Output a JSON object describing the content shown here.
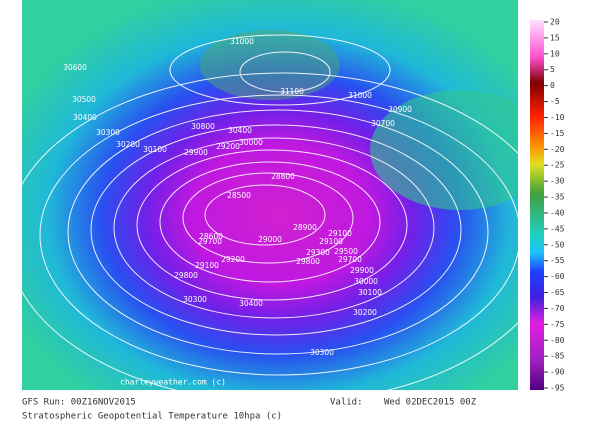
{
  "map": {
    "contour_labels": [
      "31000",
      "30600",
      "31100",
      "31000",
      "30900",
      "30500",
      "30400",
      "30800",
      "30400",
      "30700",
      "30300",
      "30200",
      "30100",
      "30000",
      "29900",
      "29200",
      "28800",
      "28500",
      "28900",
      "29100",
      "28600",
      "29700",
      "29000",
      "29100",
      "29300",
      "29500",
      "29200",
      "29800",
      "29700",
      "29100",
      "29900",
      "29800",
      "30000",
      "30100",
      "30300",
      "30400",
      "30200",
      "30300"
    ],
    "watermark": "charleyweather.com (c)"
  },
  "colorbar": {
    "ticks": [
      "20",
      "15",
      "10",
      "5",
      "0",
      "-5",
      "-10",
      "-15",
      "-20",
      "-25",
      "-30",
      "-35",
      "-40",
      "-45",
      "-50",
      "-55",
      "-60",
      "-65",
      "-70",
      "-75",
      "-80",
      "-85",
      "-90",
      "-95"
    ]
  },
  "footer": {
    "run": "GFS Run: 00Z16NOV2015",
    "valid_label": "Valid:",
    "valid": "Wed 02DEC2015 00Z",
    "product": "Stratospheric Geopotential Temperature 10hpa (c)"
  }
}
